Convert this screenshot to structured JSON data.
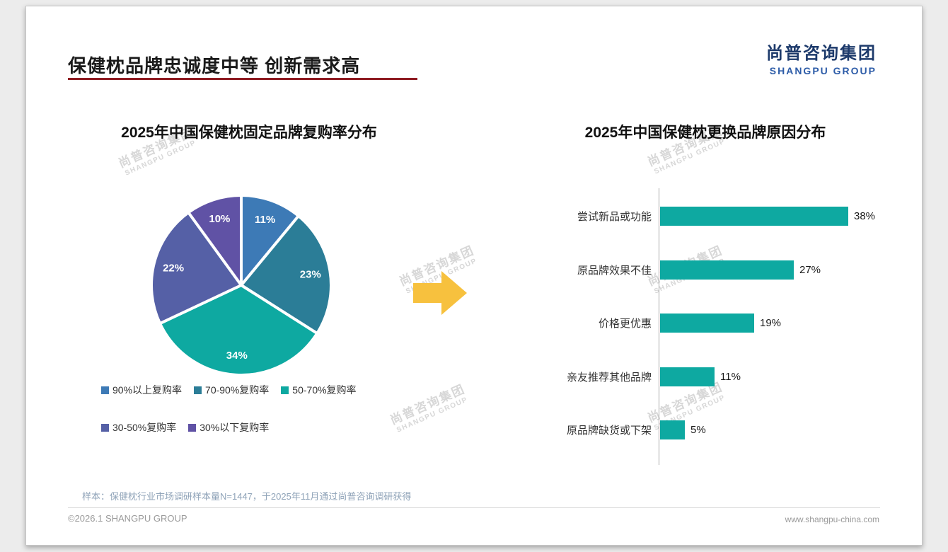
{
  "page": {
    "title": "保健枕品牌忠诚度中等 创新需求高",
    "logo": {
      "cn": "尚普咨询集团",
      "en": "SHANGPU GROUP"
    },
    "watermark": {
      "cn": "尚普咨询集团",
      "en": "SHANGPU GROUP"
    },
    "note": "样本：保健枕行业市场调研样本量N=1447，于2025年11月通过尚普咨询调研获得",
    "footer_left": "©2026.1 SHANGPU GROUP",
    "footer_right": "www.shangpu-china.com",
    "accent_colors": {
      "title_underline": "#8e1b22",
      "arrow": "#f7c13e"
    }
  },
  "chart_data": [
    {
      "type": "pie",
      "title": "2025年中国保健枕固定品牌复购率分布",
      "labels": [
        "90%以上复购率",
        "70-90%复购率",
        "50-70%复购率",
        "30-50%复购率",
        "30%以下复购率"
      ],
      "values": [
        11,
        23,
        34,
        22,
        10
      ],
      "slice_labels": [
        "11%",
        "23%",
        "34%",
        "22%",
        "10%"
      ],
      "colors": [
        "#3d7ab6",
        "#2b7d97",
        "#0ea9a1",
        "#5560a6",
        "#6052a5"
      ],
      "start_angle_deg": -90,
      "direction": "clockwise",
      "legend_position": "bottom"
    },
    {
      "type": "bar",
      "orientation": "horizontal",
      "title": "2025年中国保健枕更换品牌原因分布",
      "categories": [
        "尝试新品或功能",
        "原品牌效果不佳",
        "价格更优惠",
        "亲友推荐其他品牌",
        "原品牌缺货或下架"
      ],
      "values": [
        38,
        27,
        19,
        11,
        5
      ],
      "value_labels": [
        "38%",
        "27%",
        "19%",
        "11%",
        "5%"
      ],
      "bar_color": "#0ea9a1",
      "xlim": [
        0,
        40
      ],
      "grid": false,
      "legend_position": "none"
    }
  ]
}
